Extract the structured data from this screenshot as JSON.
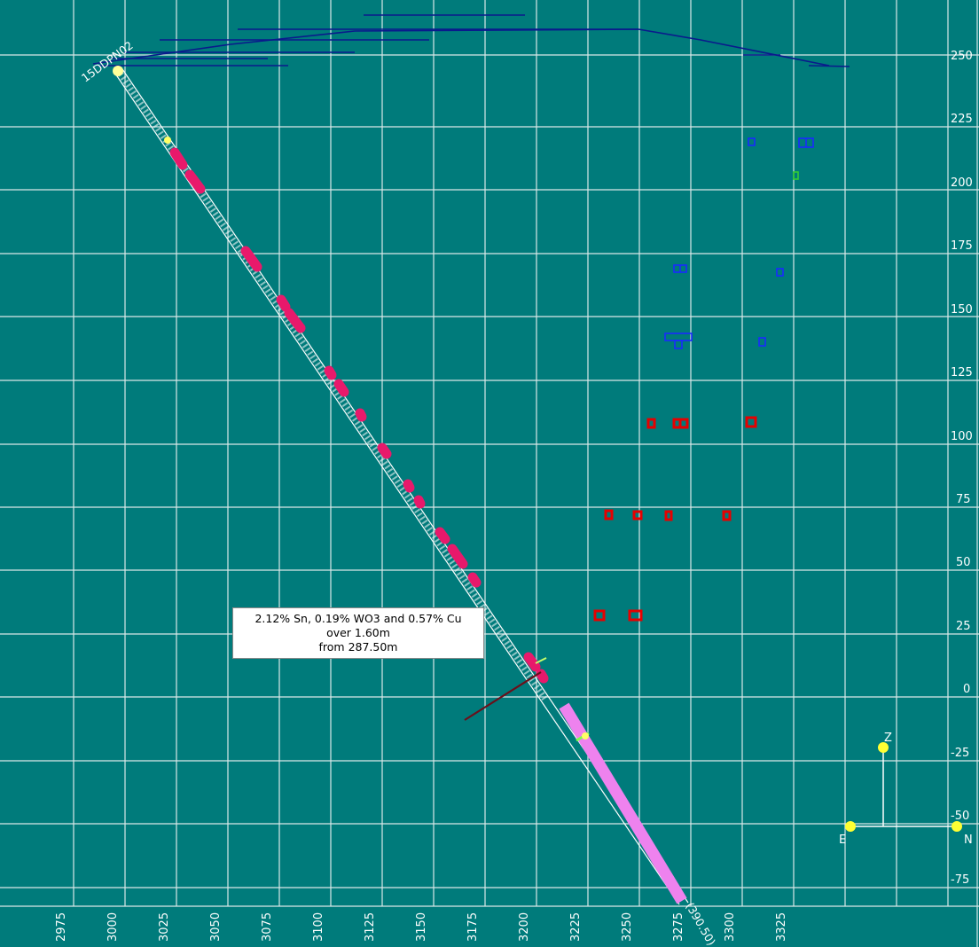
{
  "hole": {
    "collar_label": "15DDPN02",
    "end_label": "(390.50)"
  },
  "axes": {
    "x_ticks": [
      "2975",
      "3000",
      "3025",
      "3050",
      "3075",
      "3100",
      "3125",
      "3150",
      "3175",
      "3200",
      "3225",
      "3250",
      "3275",
      "3300",
      "3325"
    ],
    "y_ticks": [
      "250",
      "225",
      "200",
      "175",
      "150",
      "125",
      "100",
      "75",
      "50",
      "25",
      "0",
      "-25",
      "-50",
      "-75"
    ]
  },
  "intercept": {
    "line1": "2.12% Sn, 0.19% WO3 and 0.57% Cu",
    "line2": "over 1.60m",
    "line3": "from 287.50m"
  },
  "orientation": {
    "z_label": "Z",
    "e_label": "E",
    "n_label": "N"
  },
  "colors": {
    "background": "#007b7b",
    "grid": "#d9e8e8",
    "trace": "#ffffff",
    "high_grade": "#e8196b",
    "low_grade": "#ee82ee",
    "surface": "#0a1a8c",
    "red_block": "#e60000",
    "blue_block": "#1a2aff",
    "green_block": "#33cc33",
    "pierce_point": "#6b0f1a",
    "axis_node": "#ffff33"
  }
}
